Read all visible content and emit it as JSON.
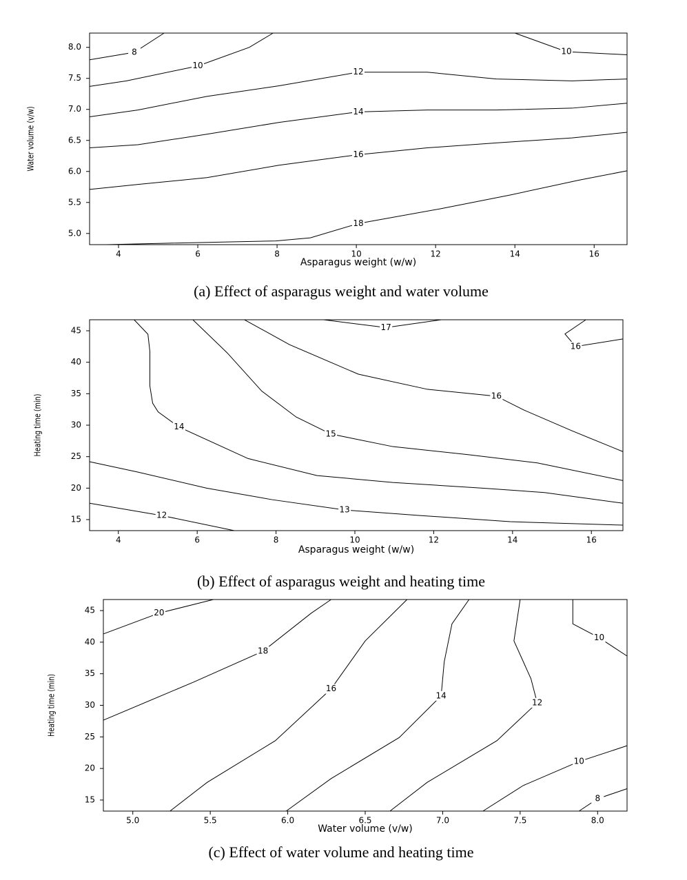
{
  "chart_data": [
    {
      "type": "contour",
      "caption": "(a)  Effect  of  asparagus  weight  and  water  volume",
      "xlabel": "Asparagus weight (w/w)",
      "ylabel": "Water volume (v/w)",
      "xlim": [
        3.27,
        16.83
      ],
      "ylim": [
        4.82,
        8.23
      ],
      "xticks": [
        4,
        6,
        8,
        10,
        12,
        14,
        16
      ],
      "yticks": [
        {
          "value": 5,
          "label": "5.0"
        },
        {
          "value": 5.5,
          "label": "5.5"
        },
        {
          "value": 6,
          "label": "6.0"
        },
        {
          "value": 6.5,
          "label": "6.5"
        },
        {
          "value": 7,
          "label": "7.0"
        },
        {
          "value": 7.5,
          "label": "7.5"
        },
        {
          "value": 8,
          "label": "8.0"
        }
      ],
      "contours": [
        {
          "level": 8,
          "x": [
            3.27,
            4.4,
            5.15
          ],
          "y": [
            7.8,
            7.92,
            8.23
          ]
        },
        {
          "level": 10,
          "x": [
            3.27,
            4.2,
            6,
            7.3,
            7.9
          ],
          "y": [
            7.37,
            7.46,
            7.7,
            8.0,
            8.23
          ]
        },
        {
          "level": 10,
          "x": [
            14,
            15.3,
            16.83
          ],
          "y": [
            8.23,
            7.93,
            7.88
          ]
        },
        {
          "level": 12,
          "x": [
            3.27,
            4.49,
            6.23,
            8.05,
            10.05,
            11.79,
            13.53,
            15.44,
            16.83
          ],
          "y": [
            6.88,
            6.99,
            7.21,
            7.38,
            7.6,
            7.6,
            7.49,
            7.46,
            7.49
          ]
        },
        {
          "level": 14,
          "x": [
            3.27,
            4.49,
            6.23,
            8.05,
            10.05,
            11.79,
            13.53,
            15.44,
            16.83
          ],
          "y": [
            6.38,
            6.43,
            6.6,
            6.79,
            6.96,
            6.99,
            6.99,
            7.02,
            7.1
          ]
        },
        {
          "level": 16,
          "x": [
            3.27,
            4.49,
            6.23,
            8.05,
            10.05,
            11.79,
            13.53,
            15.44,
            16.83
          ],
          "y": [
            5.71,
            5.79,
            5.9,
            6.1,
            6.27,
            6.38,
            6.46,
            6.54,
            6.63
          ]
        },
        {
          "level": 18,
          "x": [
            3.7,
            5.01,
            7.97,
            8.84,
            10.05,
            12.14,
            13.88,
            15.62,
            16.83
          ],
          "y": [
            4.82,
            4.84,
            4.88,
            4.93,
            5.16,
            5.4,
            5.62,
            5.86,
            6.01
          ]
        }
      ]
    },
    {
      "type": "contour",
      "caption": "(b)  Effect  of  asparagus  weight  and  heating  time",
      "xlabel": "Asparagus weight (w/w)",
      "ylabel": "Heating time (min)",
      "xlim": [
        3.27,
        16.8
      ],
      "ylim": [
        13.25,
        46.75
      ],
      "xticks": [
        4,
        6,
        8,
        10,
        12,
        14,
        16
      ],
      "yticks": [
        15,
        20,
        25,
        30,
        35,
        40,
        45
      ],
      "contours": [
        {
          "level": 12,
          "x": [
            3.27,
            5.1,
            6.94
          ],
          "y": [
            17.6,
            15.65,
            13.25
          ]
        },
        {
          "level": 13,
          "x": [
            3.27,
            4.49,
            6.24,
            7.9,
            9.74,
            11.66,
            13.94,
            16.8
          ],
          "y": [
            24.2,
            22.55,
            20.0,
            18.17,
            16.53,
            15.65,
            14.67,
            14.12
          ]
        },
        {
          "level": 14,
          "x": [
            4.4,
            4.75,
            4.8,
            4.8,
            4.87,
            5.01,
            5.54,
            7.29,
            9.04,
            10.96,
            13.24,
            14.81,
            16.8
          ],
          "y": [
            46.75,
            44.45,
            41.7,
            36.2,
            33.5,
            32.1,
            29.7,
            24.7,
            22.0,
            20.9,
            20.0,
            19.3,
            17.6
          ]
        },
        {
          "level": 15,
          "x": [
            5.89,
            6.76,
            7.64,
            8.51,
            9.39,
            10.96,
            12.89,
            14.63,
            16.8
          ],
          "y": [
            46.75,
            41.5,
            35.4,
            31.3,
            28.6,
            26.6,
            25.3,
            24.0,
            21.2
          ]
        },
        {
          "level": 16,
          "x": [
            7.2,
            8.34,
            10.09,
            11.84,
            13.59,
            14.29,
            15.51,
            16.8
          ],
          "y": [
            46.75,
            42.8,
            38.1,
            35.7,
            34.6,
            32.4,
            29.1,
            25.8
          ]
        },
        {
          "level": 17,
          "x": [
            9.21,
            10.79,
            12.19
          ],
          "y": [
            46.75,
            45.5,
            46.75
          ]
        },
        {
          "level": 16,
          "x": [
            15.86,
            15.33,
            15.6,
            16.8
          ],
          "y": [
            46.75,
            44.5,
            42.5,
            43.7
          ]
        }
      ]
    },
    {
      "type": "contour",
      "caption": "(c)  Effect  of  water  volume  and  heating  time",
      "xlabel": "Water volume (v/w)",
      "ylabel": "Heating time (min)",
      "xlim": [
        4.81,
        8.19
      ],
      "ylim": [
        13.25,
        46.75
      ],
      "xticks": [
        {
          "value": 5,
          "label": "5.0"
        },
        {
          "value": 5.5,
          "label": "5.5"
        },
        {
          "value": 6,
          "label": "6.0"
        },
        {
          "value": 6.5,
          "label": "6.5"
        },
        {
          "value": 7,
          "label": "7.0"
        },
        {
          "value": 7.5,
          "label": "7.5"
        },
        {
          "value": 8,
          "label": "8.0"
        }
      ],
      "yticks": [
        15,
        20,
        25,
        30,
        35,
        40,
        45
      ],
      "contours": [
        {
          "level": 20,
          "x": [
            4.81,
            5.17,
            5.52
          ],
          "y": [
            41.3,
            44.6,
            46.75
          ]
        },
        {
          "level": 18,
          "x": [
            4.81,
            5.39,
            5.84,
            6.15,
            6.28
          ],
          "y": [
            27.65,
            33.65,
            38.56,
            44.56,
            46.75
          ]
        },
        {
          "level": 16,
          "x": [
            5.24,
            5.48,
            5.92,
            6.28,
            6.5,
            6.77
          ],
          "y": [
            13.25,
            17.8,
            24.4,
            32.6,
            40.2,
            46.75
          ]
        },
        {
          "level": 14,
          "x": [
            5.99,
            6.28,
            6.72,
            6.99,
            7.01,
            7.06,
            7.17
          ],
          "y": [
            13.25,
            18.4,
            24.9,
            31.5,
            36.9,
            42.9,
            46.75
          ]
        },
        {
          "level": 12,
          "x": [
            6.66,
            6.9,
            7.35,
            7.61,
            7.57,
            7.46,
            7.5
          ],
          "y": [
            13.25,
            17.8,
            24.4,
            30.4,
            34.2,
            40.2,
            46.75
          ]
        },
        {
          "level": 10,
          "x": [
            7.84,
            7.84,
            8.01,
            8.19
          ],
          "y": [
            46.75,
            42.9,
            40.7,
            37.8
          ]
        },
        {
          "level": 10,
          "x": [
            7.26,
            7.52,
            7.88,
            8.19
          ],
          "y": [
            13.25,
            17.3,
            21.1,
            23.6
          ]
        },
        {
          "level": 8,
          "x": [
            7.88,
            8.0,
            8.19
          ],
          "y": [
            13.25,
            15.2,
            16.8
          ]
        }
      ]
    }
  ]
}
